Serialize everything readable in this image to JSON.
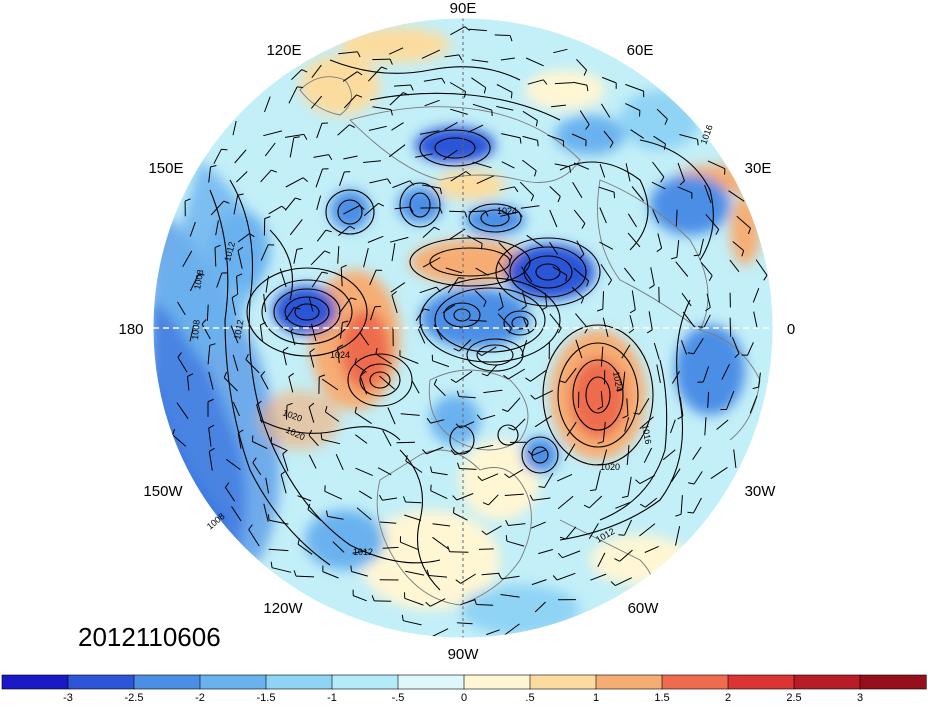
{
  "map": {
    "projection": "north-polar-stereographic",
    "date_label": "2012110606",
    "longitude_labels": [
      {
        "text": "90E",
        "lon": 90
      },
      {
        "text": "60E",
        "lon": 60
      },
      {
        "text": "30E",
        "lon": 30
      },
      {
        "text": "0",
        "lon": 0
      },
      {
        "text": "30W",
        "lon": -30
      },
      {
        "text": "60W",
        "lon": -60
      },
      {
        "text": "90W",
        "lon": -90
      },
      {
        "text": "120W",
        "lon": -120
      },
      {
        "text": "150W",
        "lon": -150
      },
      {
        "text": "180",
        "lon": 180
      },
      {
        "text": "150E",
        "lon": 150
      },
      {
        "text": "120E",
        "lon": 120
      }
    ],
    "isobar_labels": [
      "1016",
      "1024",
      "1012",
      "1008",
      "1008",
      "1012",
      "1024",
      "1020",
      "1020",
      "1024",
      "1016",
      "1020",
      "1012",
      "1012",
      "1008"
    ],
    "colors": {
      "coast": "#7a7a7a",
      "contour": "#000000",
      "wind_barb": "#000000"
    }
  },
  "colorbar": {
    "labels": [
      "-3",
      "-2.5",
      "-2",
      "-1.5",
      "-1",
      "-.5",
      "0",
      ".5",
      "1",
      "1.5",
      "2",
      "2.5",
      "3"
    ],
    "colors": [
      "#1919c8",
      "#2c55d7",
      "#4b8ee6",
      "#6ab2ef",
      "#8fd3f5",
      "#b4ebf9",
      "#def7fb",
      "#fff6d4",
      "#fcdc9e",
      "#f6ad73",
      "#ee6c4d",
      "#dc3333",
      "#b81c26",
      "#980f1c"
    ]
  }
}
